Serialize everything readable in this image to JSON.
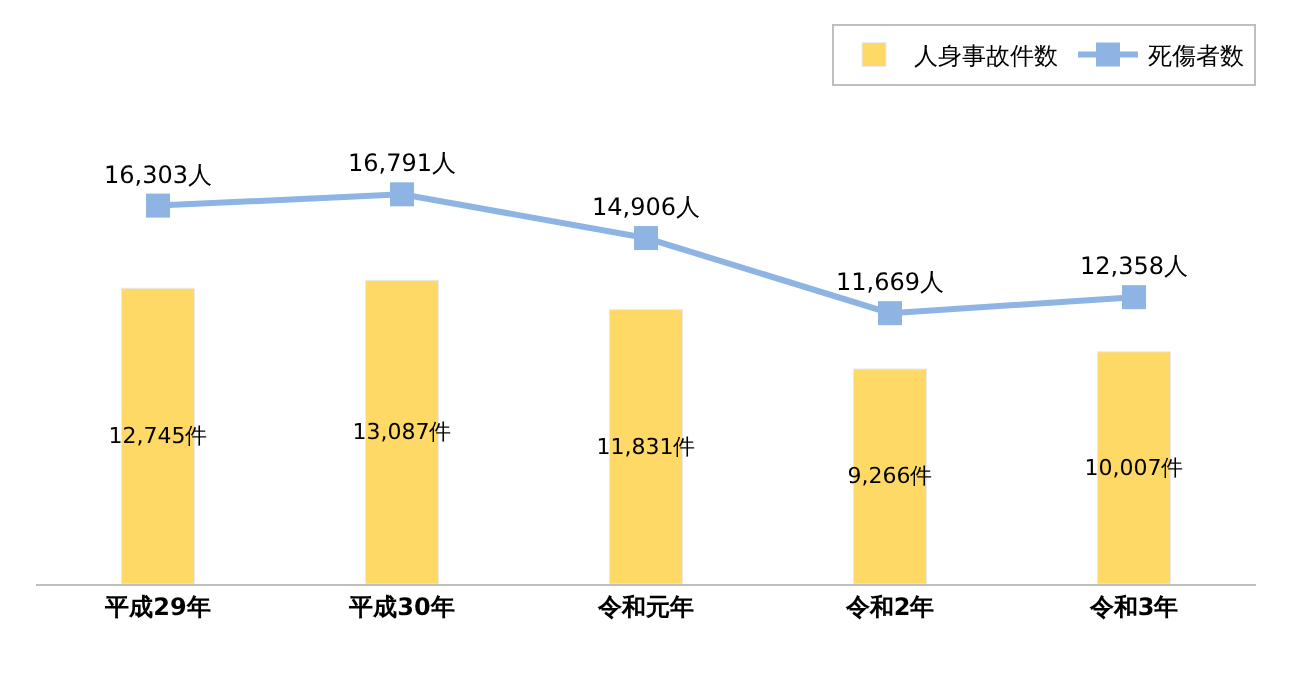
{
  "chart_data": {
    "type": "bar",
    "categories": [
      "平成29年",
      "平成30年",
      "令和元年",
      "令和2年",
      "令和3年"
    ],
    "series": [
      {
        "name": "人身事故件数",
        "color": "#ffd966",
        "values": [
          12745,
          13087,
          11831,
          9266,
          10007
        ],
        "value_labels": [
          "12,745件",
          "13,087件",
          "11,831件",
          "9,266件",
          "10,007件"
        ]
      },
      {
        "name": "死傷者数",
        "type": "line",
        "color": "#8db4e2",
        "marker": "square",
        "values": [
          16303,
          16791,
          14906,
          11669,
          12358
        ],
        "value_labels": [
          "16,303人",
          "16,791人",
          "14,906人",
          "11,669人",
          "12,358人"
        ]
      }
    ],
    "tick_labels": "x",
    "legend": "top right"
  }
}
